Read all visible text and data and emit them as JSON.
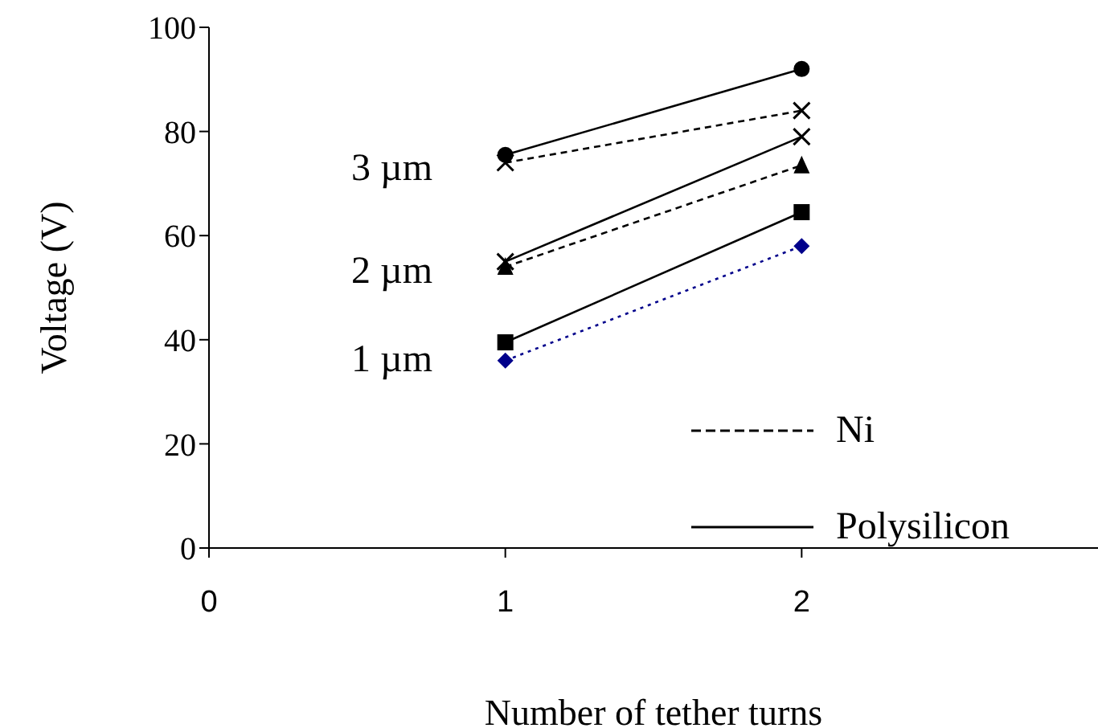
{
  "chart_data": {
    "type": "line",
    "xlabel": "Number of tether turns",
    "ylabel": "Voltage (V)",
    "x": [
      1,
      2
    ],
    "xlim": [
      0,
      3
    ],
    "xticks": [
      0,
      1,
      2
    ],
    "ylim": [
      0,
      100
    ],
    "yticks": [
      0,
      20,
      40,
      60,
      80,
      100
    ],
    "legend": "bottom right",
    "series": [
      {
        "name": "Ni",
        "color": "#000000",
        "values": [
          74,
          84
        ],
        "marker": "cross",
        "line_style": "dashed"
      },
      {
        "name": "Polysilicon",
        "color": "#000000",
        "values": [
          75.5,
          92
        ],
        "marker": "circle",
        "line_style": "solid"
      },
      {
        "color": "#000000",
        "values": [
          55,
          79
        ],
        "marker": "cross",
        "line_style": "solid"
      },
      {
        "color": "#000000",
        "values": [
          54,
          73.5
        ],
        "marker": "triangle",
        "line_style": "dashed"
      },
      {
        "color": "#000000",
        "values": [
          39.5,
          64.5
        ],
        "marker": "square",
        "line_style": "solid"
      },
      {
        "color": "#00008b",
        "values": [
          36,
          58
        ],
        "marker": "diamond",
        "line_style": "dotted"
      }
    ],
    "annotations": [
      "3 µm",
      "2 µm",
      "1 µm"
    ]
  }
}
